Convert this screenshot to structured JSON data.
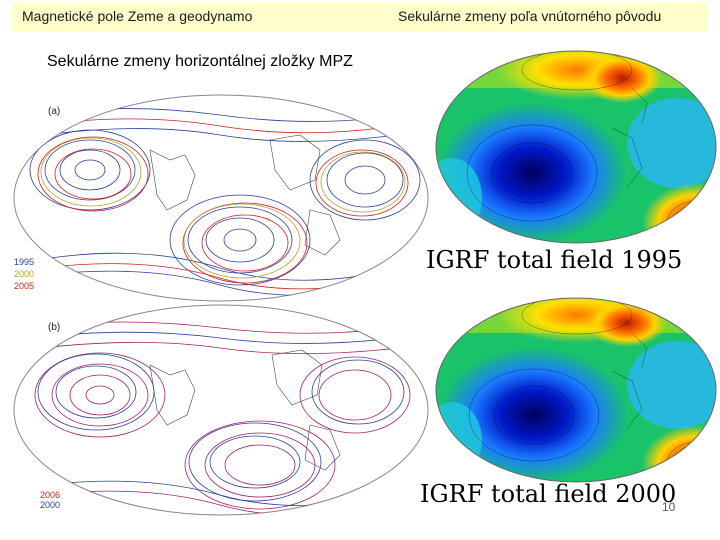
{
  "header": {
    "left_title": "Magnetické pole Zeme a geodynamo",
    "right_title": "Sekulárne zmeny poľa vnútorného pôvodu"
  },
  "subtitle": "Sekulárne zmeny horizontálnej zložky MPZ",
  "contour_maps": [
    {
      "panel_label": "(a)",
      "legend": [
        {
          "label": "1995",
          "color": "#2c3e9e"
        },
        {
          "label": "2000",
          "color": "#b8a22a"
        },
        {
          "label": "2005",
          "color": "#cc2222"
        }
      ]
    },
    {
      "panel_label": "(b)",
      "legend": [
        {
          "label": "2006",
          "color": "#cc2222"
        },
        {
          "label": "2000",
          "color": "#2c3e9e"
        }
      ]
    }
  ],
  "igrf_maps": [
    {
      "caption": "IGRF total field 1995"
    },
    {
      "caption": "IGRF total field 2000"
    }
  ],
  "page_number": "10",
  "colors": {
    "header_band": "#ffffcc",
    "contour_blue": "#2c3e9e",
    "contour_red": "#cc2222",
    "field_low": "#00005c",
    "field_high": "#b81a00"
  }
}
